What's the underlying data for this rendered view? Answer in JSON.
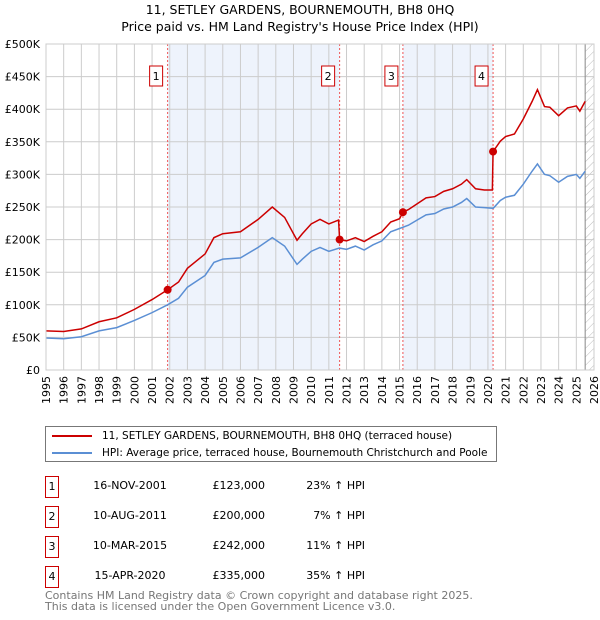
{
  "title": "11, SETLEY GARDENS, BOURNEMOUTH, BH8 0HQ",
  "subtitle": "Price paid vs. HM Land Registry's House Price Index (HPI)",
  "chart_data": {
    "type": "line",
    "xlim": [
      1995,
      2026
    ],
    "ylim": [
      0,
      500000
    ],
    "yticks": [
      0,
      50000,
      100000,
      150000,
      200000,
      250000,
      300000,
      350000,
      400000,
      450000,
      500000
    ],
    "ytick_labels": [
      "£0",
      "£50K",
      "£100K",
      "£150K",
      "£200K",
      "£250K",
      "£300K",
      "£350K",
      "£400K",
      "£450K",
      "£500K"
    ],
    "xticks": [
      "1995",
      "1996",
      "1997",
      "1998",
      "1999",
      "2000",
      "2001",
      "2002",
      "2003",
      "2004",
      "2005",
      "2006",
      "2007",
      "2008",
      "2009",
      "2010",
      "2011",
      "2012",
      "2013",
      "2014",
      "2015",
      "2016",
      "2017",
      "2018",
      "2019",
      "2020",
      "2021",
      "2022",
      "2023",
      "2024",
      "2025",
      "2026"
    ],
    "grid": true,
    "shaded_ranges": [
      [
        2001.88,
        2011.61
      ],
      [
        2015.19,
        2020.29
      ]
    ],
    "forecast_from": 2025.5,
    "series": [
      {
        "name": "11, SETLEY GARDENS, BOURNEMOUTH, BH8 0HQ (terraced house)",
        "color": "#cc0000",
        "points": [
          [
            1995,
            60000
          ],
          [
            1996,
            59000
          ],
          [
            1997,
            63000
          ],
          [
            1998,
            74000
          ],
          [
            1999,
            80000
          ],
          [
            2000,
            93000
          ],
          [
            2001,
            108000
          ],
          [
            2001.88,
            123000
          ],
          [
            2002.5,
            135000
          ],
          [
            2003,
            156000
          ],
          [
            2004,
            178000
          ],
          [
            2004.5,
            203000
          ],
          [
            2005,
            209000
          ],
          [
            2006,
            212000
          ],
          [
            2007,
            231000
          ],
          [
            2007.8,
            250000
          ],
          [
            2008.5,
            234000
          ],
          [
            2009.2,
            199000
          ],
          [
            2009.5,
            209000
          ],
          [
            2010,
            224000
          ],
          [
            2010.5,
            231000
          ],
          [
            2011,
            224000
          ],
          [
            2011.55,
            230000
          ],
          [
            2011.61,
            200000
          ],
          [
            2012,
            198000
          ],
          [
            2012.5,
            203000
          ],
          [
            2013,
            197000
          ],
          [
            2013.5,
            205000
          ],
          [
            2014,
            212000
          ],
          [
            2014.5,
            227000
          ],
          [
            2015,
            232000
          ],
          [
            2015.19,
            242000
          ],
          [
            2015.5,
            246000
          ],
          [
            2016,
            255000
          ],
          [
            2016.5,
            264000
          ],
          [
            2017,
            266000
          ],
          [
            2017.5,
            274000
          ],
          [
            2018,
            278000
          ],
          [
            2018.5,
            285000
          ],
          [
            2018.8,
            292000
          ],
          [
            2019.3,
            278000
          ],
          [
            2019.8,
            276000
          ],
          [
            2020.25,
            276000
          ],
          [
            2020.29,
            335000
          ],
          [
            2020.7,
            351000
          ],
          [
            2021,
            358000
          ],
          [
            2021.5,
            362000
          ],
          [
            2022,
            385000
          ],
          [
            2022.5,
            412000
          ],
          [
            2022.8,
            430000
          ],
          [
            2023.2,
            404000
          ],
          [
            2023.5,
            403000
          ],
          [
            2024,
            390000
          ],
          [
            2024.5,
            402000
          ],
          [
            2025,
            405000
          ],
          [
            2025.2,
            397000
          ],
          [
            2025.5,
            412000
          ]
        ]
      },
      {
        "name": "HPI: Average price, terraced house, Bournemouth Christchurch and Poole",
        "color": "#5b8fd4",
        "points": [
          [
            1995,
            49000
          ],
          [
            1996,
            48000
          ],
          [
            1997,
            51000
          ],
          [
            1998,
            60000
          ],
          [
            1999,
            65000
          ],
          [
            2000,
            76000
          ],
          [
            2001,
            88000
          ],
          [
            2001.88,
            100000
          ],
          [
            2002.5,
            110000
          ],
          [
            2003,
            127000
          ],
          [
            2004,
            145000
          ],
          [
            2004.5,
            165000
          ],
          [
            2005,
            170000
          ],
          [
            2006,
            172000
          ],
          [
            2007,
            188000
          ],
          [
            2007.8,
            203000
          ],
          [
            2008.5,
            190000
          ],
          [
            2009.2,
            162000
          ],
          [
            2009.5,
            170000
          ],
          [
            2010,
            182000
          ],
          [
            2010.5,
            188000
          ],
          [
            2011,
            182000
          ],
          [
            2011.6,
            187000
          ],
          [
            2012,
            185000
          ],
          [
            2012.5,
            190000
          ],
          [
            2013,
            184000
          ],
          [
            2013.5,
            192000
          ],
          [
            2014,
            198000
          ],
          [
            2014.5,
            212000
          ],
          [
            2015,
            217000
          ],
          [
            2015.5,
            222000
          ],
          [
            2016,
            230000
          ],
          [
            2016.5,
            238000
          ],
          [
            2017,
            240000
          ],
          [
            2017.5,
            247000
          ],
          [
            2018,
            250000
          ],
          [
            2018.5,
            257000
          ],
          [
            2018.8,
            263000
          ],
          [
            2019.3,
            250000
          ],
          [
            2019.8,
            249000
          ],
          [
            2020.3,
            248000
          ],
          [
            2020.7,
            260000
          ],
          [
            2021,
            265000
          ],
          [
            2021.5,
            268000
          ],
          [
            2022,
            285000
          ],
          [
            2022.5,
            305000
          ],
          [
            2022.8,
            316000
          ],
          [
            2023.2,
            300000
          ],
          [
            2023.5,
            298000
          ],
          [
            2024,
            288000
          ],
          [
            2024.5,
            297000
          ],
          [
            2025,
            300000
          ],
          [
            2025.2,
            294000
          ],
          [
            2025.5,
            305000
          ]
        ]
      }
    ],
    "sales": [
      {
        "label": "1",
        "x": 2001.88,
        "y": 123000
      },
      {
        "label": "2",
        "x": 2011.61,
        "y": 200000
      },
      {
        "label": "3",
        "x": 2015.19,
        "y": 242000
      },
      {
        "label": "4",
        "x": 2020.29,
        "y": 335000
      }
    ]
  },
  "legend": {
    "property": "11, SETLEY GARDENS, BOURNEMOUTH, BH8 0HQ (terraced house)",
    "hpi": "HPI: Average price, terraced house, Bournemouth Christchurch and Poole"
  },
  "transactions": [
    {
      "num": "1",
      "date": "16-NOV-2001",
      "price": "£123,000",
      "pct": "23% ↑ HPI"
    },
    {
      "num": "2",
      "date": "10-AUG-2011",
      "price": "£200,000",
      "pct": "7% ↑ HPI"
    },
    {
      "num": "3",
      "date": "10-MAR-2015",
      "price": "£242,000",
      "pct": "11% ↑ HPI"
    },
    {
      "num": "4",
      "date": "15-APR-2020",
      "price": "£335,000",
      "pct": "35% ↑ HPI"
    }
  ],
  "footer": [
    "Contains HM Land Registry data © Crown copyright and database right 2025.",
    "This data is licensed under the Open Government Licence v3.0."
  ]
}
